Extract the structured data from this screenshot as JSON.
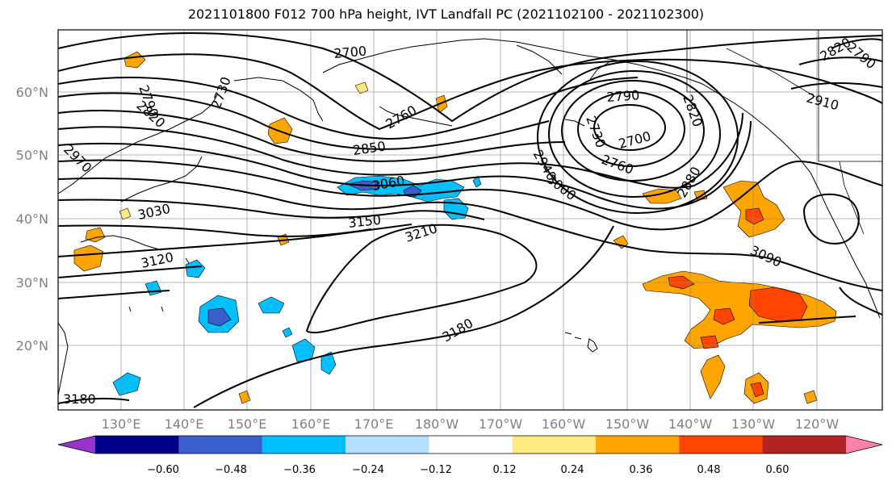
{
  "title": "2021101800 F012 700 hPa height, IVT Landfall PC (2021102100 - 2021102300)",
  "lat_labels": [
    "60°N",
    "50°N",
    "40°N",
    "30°N",
    "20°N"
  ],
  "lon_labels": [
    "130°E",
    "140°E",
    "150°E",
    "160°E",
    "170°E",
    "180°W",
    "170°W",
    "160°W",
    "150°W",
    "140°W",
    "130°W",
    "120°W"
  ],
  "contour_labels": [
    {
      "text": "2700"
    },
    {
      "text": "2790"
    },
    {
      "text": "2730"
    },
    {
      "text": "2820"
    },
    {
      "text": "2760"
    },
    {
      "text": "2850"
    },
    {
      "text": "2970"
    },
    {
      "text": "3060"
    },
    {
      "text": "3030"
    },
    {
      "text": "3150"
    },
    {
      "text": "3210"
    },
    {
      "text": "3120"
    },
    {
      "text": "3180"
    },
    {
      "text": "2790"
    },
    {
      "text": "2820"
    },
    {
      "text": "2730"
    },
    {
      "text": "2700"
    },
    {
      "text": "2760"
    },
    {
      "text": "2940"
    },
    {
      "text": "3000"
    },
    {
      "text": "2880"
    },
    {
      "text": "2910"
    },
    {
      "text": "3090"
    },
    {
      "text": "2820"
    },
    {
      "text": "2790"
    },
    {
      "text": "3180"
    }
  ],
  "colorbar": {
    "ticks": [
      "−0.60",
      "−0.48",
      "−0.36",
      "−0.24",
      "−0.12",
      "0.12",
      "0.24",
      "0.36",
      "0.48",
      "0.60"
    ],
    "colors": [
      "#9932cc",
      "#00008b",
      "#3a5fcd",
      "#00bfff",
      "#b2dfff",
      "#ffffff",
      "#ffea80",
      "#ffa500",
      "#ff4500",
      "#b22222",
      "#ff82ab"
    ]
  }
}
